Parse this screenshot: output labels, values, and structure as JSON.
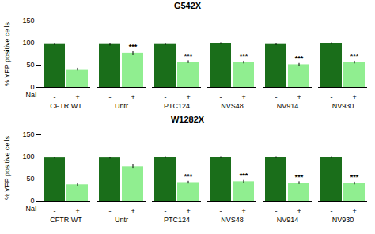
{
  "chart_data": [
    {
      "type": "bar",
      "title": "G542X",
      "xlabel": "NaI",
      "ylabel": "% YFP positive cells",
      "categories": [
        "CFTR WT",
        "Untr",
        "PTC124",
        "NVS48",
        "NV914",
        "NV930"
      ],
      "series": [
        {
          "name": "-",
          "color": "#1a6e1a",
          "values": [
            97,
            97,
            97,
            99,
            97,
            99
          ],
          "errors": [
            2,
            3,
            2,
            2,
            2,
            2
          ]
        },
        {
          "name": "+",
          "color": "#90ee90",
          "values": [
            40,
            77,
            57,
            56,
            51,
            56
          ],
          "errors": [
            3,
            4,
            3,
            3,
            3,
            3
          ],
          "annotations": [
            null,
            "***",
            "***",
            "***",
            "***",
            "***"
          ]
        }
      ],
      "ylim": [
        0,
        150
      ],
      "yticks": [
        0,
        50,
        100,
        150
      ]
    },
    {
      "type": "bar",
      "title": "W1282X",
      "xlabel": "NaI",
      "ylabel": "% YFP positive cells",
      "categories": [
        "CFTR WT",
        "Untr",
        "PTC124",
        "NVS48",
        "NV914",
        "NV930"
      ],
      "series": [
        {
          "name": "-",
          "color": "#1a6e1a",
          "values": [
            98,
            98,
            99,
            99,
            99,
            99
          ],
          "errors": [
            2,
            2,
            2,
            2,
            2,
            2
          ]
        },
        {
          "name": "+",
          "color": "#90ee90",
          "values": [
            37,
            78,
            42,
            44,
            41,
            40
          ],
          "errors": [
            3,
            5,
            3,
            3,
            3,
            3
          ],
          "annotations": [
            null,
            null,
            "***",
            "***",
            "***",
            "***"
          ]
        }
      ],
      "ylim": [
        0,
        150
      ],
      "yticks": [
        0,
        50,
        100,
        150
      ]
    }
  ]
}
